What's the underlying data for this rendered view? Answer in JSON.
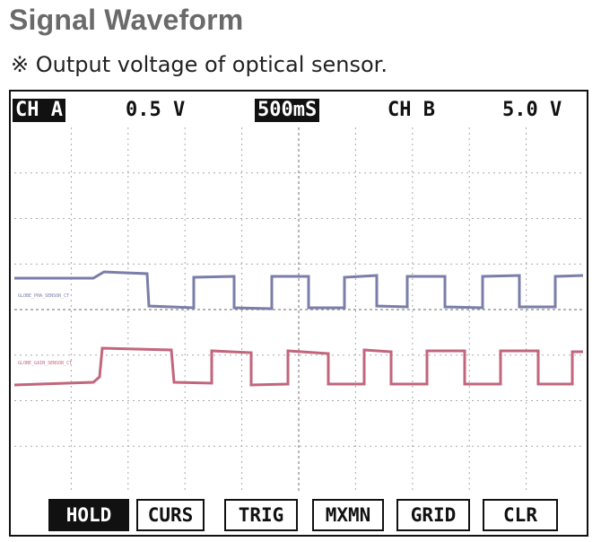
{
  "header": {
    "title": "Signal Waveform",
    "subtitle": "※ Output voltage of optical sensor."
  },
  "scope": {
    "channel_a_label": "CH A",
    "channel_a_scale": "0.5 V",
    "timebase": "500mS",
    "channel_b_label": "CH B",
    "channel_b_scale": "5.0 V",
    "trace_a_tag": "GLOBE_PHA_SENSOR_CT",
    "trace_b_tag": "GLOBE_GAIN_SENSOR_CT",
    "colors": {
      "trace_a": "#7a7ea8",
      "trace_b": "#c2667c",
      "grid": "#aaaaaa"
    },
    "buttons": [
      {
        "label": "HOLD",
        "active": true
      },
      {
        "label": "CURS",
        "active": false
      },
      {
        "label": "TRIG",
        "active": false
      },
      {
        "label": "MXMN",
        "active": false
      },
      {
        "label": "GRID",
        "active": false
      },
      {
        "label": "CLR",
        "active": false
      }
    ]
  }
}
